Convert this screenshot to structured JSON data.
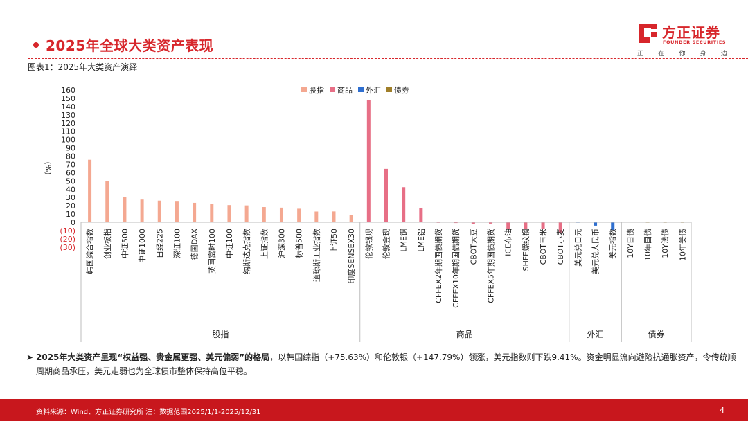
{
  "header": {
    "title": "2025年全球大类资产表现",
    "logo_cn": "方正证券",
    "logo_en": "FOUNDER SECURITIES",
    "slogan": [
      "正",
      "在",
      "你",
      "身",
      "边"
    ],
    "brand_color": "#d7262b"
  },
  "chart_caption": "图表1：2025年大类资产演绎",
  "chart_data": {
    "type": "bar",
    "ylabel": "(%)",
    "ylim": [
      -30,
      160
    ],
    "yticks": [
      -30,
      -20,
      -10,
      0,
      10,
      20,
      30,
      40,
      50,
      60,
      70,
      80,
      90,
      100,
      110,
      120,
      130,
      140,
      150,
      160
    ],
    "ytick_labels": [
      "(30)",
      "(20)",
      "(10)",
      "0",
      "10",
      "20",
      "30",
      "40",
      "50",
      "60",
      "70",
      "80",
      "90",
      "100",
      "110",
      "120",
      "130",
      "140",
      "150",
      "160"
    ],
    "grid": false,
    "legend_position": "top-center",
    "series": [
      {
        "name": "股指",
        "color": "#f4a891"
      },
      {
        "name": "商品",
        "color": "#e76f86"
      },
      {
        "name": "外汇",
        "color": "#2f6fd0"
      },
      {
        "name": "债券",
        "color": "#a07f2a"
      }
    ],
    "groups": [
      {
        "name": "股指",
        "series": 0,
        "items": [
          {
            "label": "韩国综合指数",
            "value": 75.63
          },
          {
            "label": "创业板指",
            "value": 49.6
          },
          {
            "label": "中证500",
            "value": 30.4
          },
          {
            "label": "中证1000",
            "value": 27.5
          },
          {
            "label": "日经225",
            "value": 26.2
          },
          {
            "label": "深证100",
            "value": 25.0
          },
          {
            "label": "德国DAX",
            "value": 23.5
          },
          {
            "label": "英国富时100",
            "value": 22.0
          },
          {
            "label": "中证100",
            "value": 20.8
          },
          {
            "label": "纳斯达克指数",
            "value": 20.4
          },
          {
            "label": "上证指数",
            "value": 18.4
          },
          {
            "label": "沪深300",
            "value": 17.7
          },
          {
            "label": "标普500",
            "value": 16.4
          },
          {
            "label": "道琼斯工业指数",
            "value": 13.0
          },
          {
            "label": "上证50",
            "value": 13.1
          },
          {
            "label": "印度SENSEX30",
            "value": 9.1
          }
        ]
      },
      {
        "name": "商品",
        "series": 1,
        "items": [
          {
            "label": "伦敦银现",
            "value": 147.79
          },
          {
            "label": "伦敦金现",
            "value": 64.6
          },
          {
            "label": "LME铜",
            "value": 42.5
          },
          {
            "label": "LME铝",
            "value": 17.6
          },
          {
            "label": "CFFEX2年期国债期货",
            "value": -0.4
          },
          {
            "label": "CFFEX10年期国债期货",
            "value": -0.9
          },
          {
            "label": "CBOT大豆",
            "value": -2.0
          },
          {
            "label": "CFFEX5年期国债期货",
            "value": -1.6
          },
          {
            "label": "ICE布油",
            "value": -7.7
          },
          {
            "label": "SHFE螺纹钢",
            "value": -7.8
          },
          {
            "label": "CBOT玉米",
            "value": -8.3
          },
          {
            "label": "CBOT小麦",
            "value": -12.4
          }
        ]
      },
      {
        "name": "外汇",
        "series": 2,
        "items": [
          {
            "label": "美元兑日元",
            "value": 0.1
          },
          {
            "label": "美元兑人民币",
            "value": -4.1
          },
          {
            "label": "美元指数",
            "value": -9.41
          }
        ]
      },
      {
        "name": "债券",
        "series": 3,
        "items": [
          {
            "label": "10Y日债",
            "value": 0.8
          },
          {
            "label": "10年国债",
            "value": 0.1
          },
          {
            "label": "10Y法债",
            "value": 0.1
          },
          {
            "label": "10年美债",
            "value": 0.1
          }
        ]
      }
    ]
  },
  "summary": {
    "bold": "2025年大类资产呈现“权益强、贵金属更强、美元偏弱”的格局",
    "rest": "，以韩国综指（+75.63%）和伦敦银（+147.79%）领涨，美元指数则下跌9.41%。资金明显流向避险抗通胀资产，令传统顺周期商品承压，美元走弱也为全球债市整体保持高位平稳。"
  },
  "footer": {
    "source": "资料来源：Wind、方正证券研究所 注：数据范围2025/1/1-2025/12/31",
    "page": "4"
  }
}
